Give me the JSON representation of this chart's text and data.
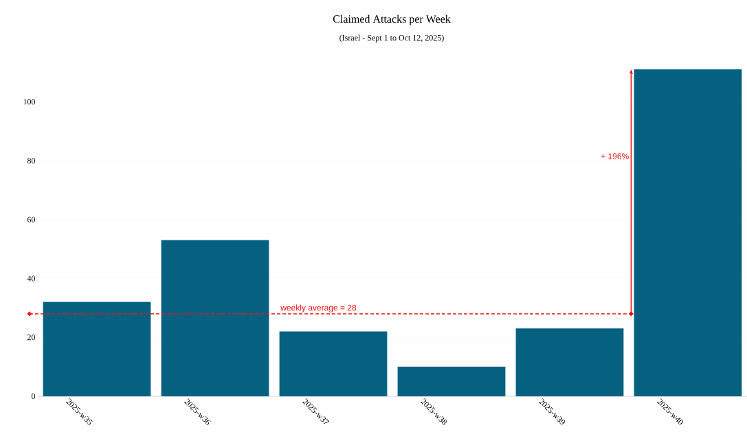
{
  "chart_data": {
    "type": "bar",
    "title": "Claimed Attacks per Week",
    "subtitle": "(Israel - Sept 1 to Oct 12, 2025)",
    "categories": [
      "2025-w35",
      "2025-w36",
      "2025-w37",
      "2025-w38",
      "2025-w39",
      "2025-w40"
    ],
    "values": [
      32,
      53,
      22,
      10,
      23,
      111
    ],
    "color": "#06607f",
    "ylim": [
      0,
      111
    ],
    "yticks": [
      0,
      20,
      40,
      60,
      80,
      100
    ],
    "grid": "y",
    "ref_lines": [
      {
        "axis": "y",
        "value": 28,
        "label": "weekly average = 28",
        "color": "#ee1111",
        "line_style": "dashed"
      }
    ],
    "annotations": [
      "+ 196%"
    ]
  }
}
